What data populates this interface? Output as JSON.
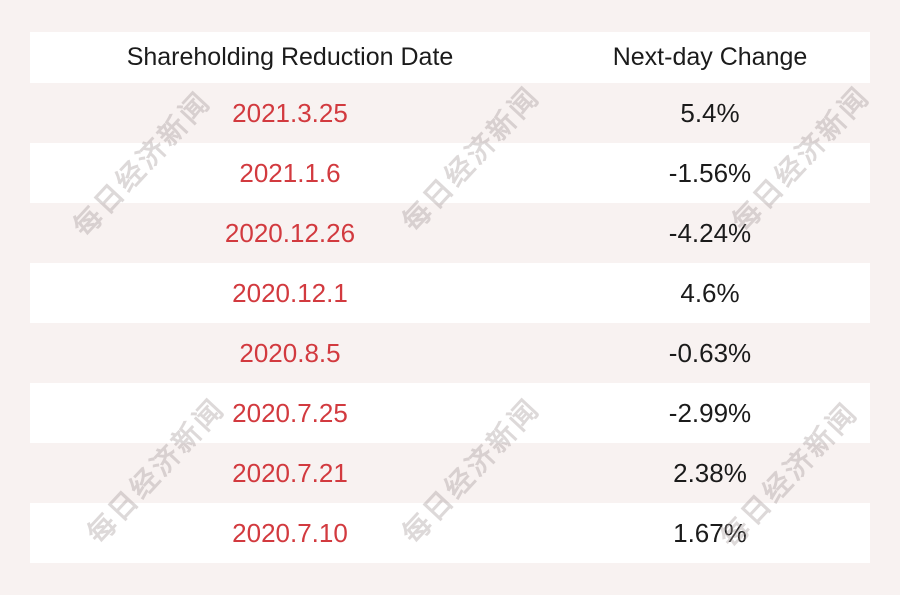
{
  "page": {
    "background_color": "#f8f2f1",
    "date_text_color": "#d23a3f",
    "value_text_color": "#1b1b1b",
    "row_alt_color": "#ffffff"
  },
  "watermark": {
    "text": "每日经济新闻",
    "color": "#d7d2d2"
  },
  "chart_data": {
    "type": "table",
    "columns": [
      "Shareholding Reduction Date",
      "Next-day Change"
    ],
    "rows": [
      {
        "date": "2021.3.25",
        "change": "5.4%"
      },
      {
        "date": "2021.1.6",
        "change": "-1.56%"
      },
      {
        "date": "2020.12.26",
        "change": "-4.24%"
      },
      {
        "date": "2020.12.1",
        "change": "4.6%"
      },
      {
        "date": "2020.8.5",
        "change": "-0.63%"
      },
      {
        "date": "2020.7.25",
        "change": "-2.99%"
      },
      {
        "date": "2020.7.21",
        "change": "2.38%"
      },
      {
        "date": "2020.7.10",
        "change": "1.67%"
      }
    ]
  }
}
